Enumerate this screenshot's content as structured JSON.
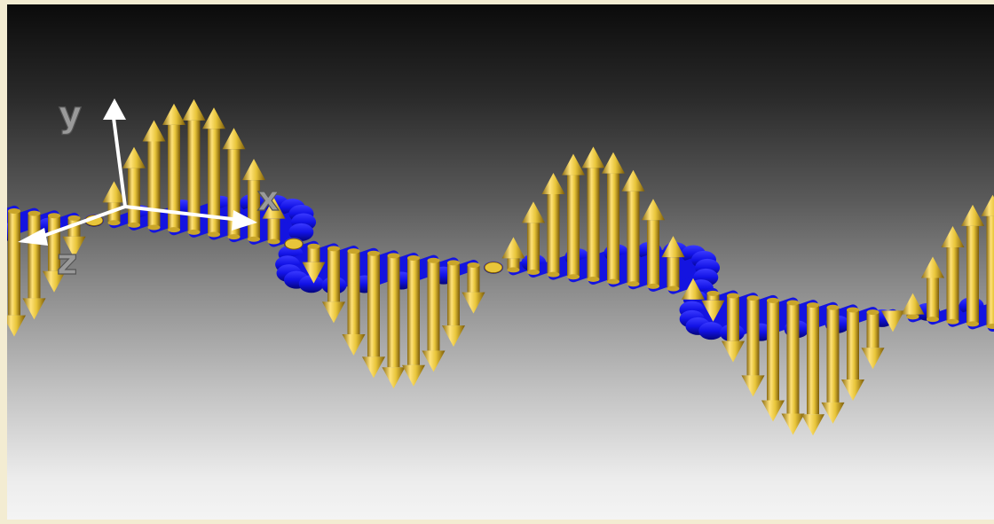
{
  "diagram": {
    "axes": {
      "y": "y",
      "x": "x",
      "z": "z"
    },
    "colors": {
      "background_top": "#0b0b0b",
      "background_bottom": "#f4f4f4",
      "electric_field": "#e8c53a",
      "magnetic_field": "#1212e6",
      "axes": "#ffffff",
      "page_border": "#f3ecd2"
    },
    "fields": [
      {
        "name": "electric-field-vector",
        "color": "#e8c53a",
        "direction": "vertical"
      },
      {
        "name": "magnetic-field-vector",
        "color": "#1212e6",
        "direction": "horizontal"
      }
    ]
  }
}
